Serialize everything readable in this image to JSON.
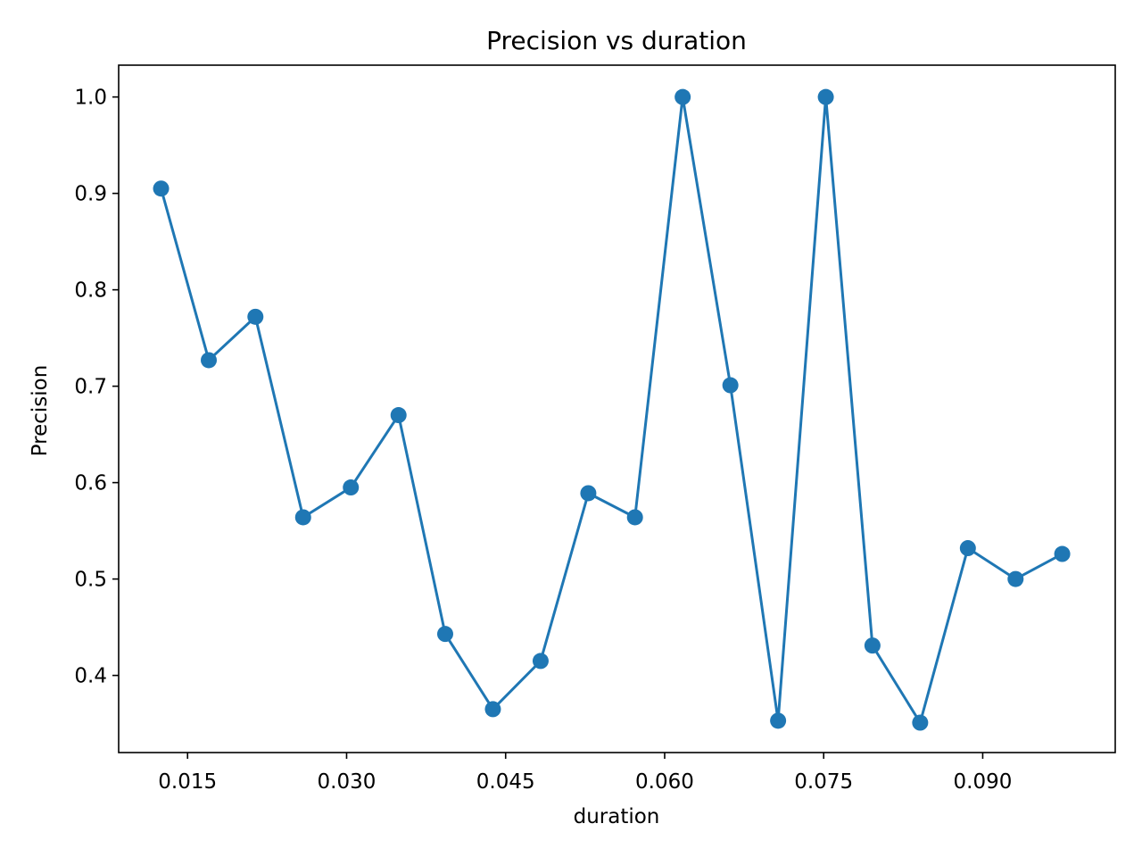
{
  "chart_data": {
    "type": "line",
    "title": "Precision vs duration",
    "xlabel": "duration",
    "ylabel": "Precision",
    "xlim": [
      0.0085,
      0.1025
    ],
    "ylim": [
      0.32,
      1.033
    ],
    "x_ticks": [
      0.015,
      0.03,
      0.045,
      0.06,
      0.075,
      0.09
    ],
    "x_tick_labels": [
      "0.015",
      "0.030",
      "0.045",
      "0.060",
      "0.075",
      "0.090"
    ],
    "y_ticks": [
      0.4,
      0.5,
      0.6,
      0.7,
      0.8,
      0.9,
      1.0
    ],
    "y_tick_labels": [
      "0.4",
      "0.5",
      "0.6",
      "0.7",
      "0.8",
      "0.9",
      "1.0"
    ],
    "grid": false,
    "series": [
      {
        "color": "#1f77b4",
        "marker": "circle",
        "x": [
          0.0125,
          0.017,
          0.0214,
          0.0259,
          0.0304,
          0.0349,
          0.0393,
          0.0438,
          0.0483,
          0.0528,
          0.0572,
          0.0617,
          0.0662,
          0.0707,
          0.0752,
          0.0796,
          0.0841,
          0.0886,
          0.0931,
          0.0975
        ],
        "y": [
          0.905,
          0.727,
          0.772,
          0.564,
          0.595,
          0.67,
          0.443,
          0.365,
          0.415,
          0.589,
          0.564,
          1.0,
          0.701,
          0.353,
          1.0,
          0.431,
          0.351,
          0.532,
          0.5,
          0.526
        ]
      }
    ]
  }
}
